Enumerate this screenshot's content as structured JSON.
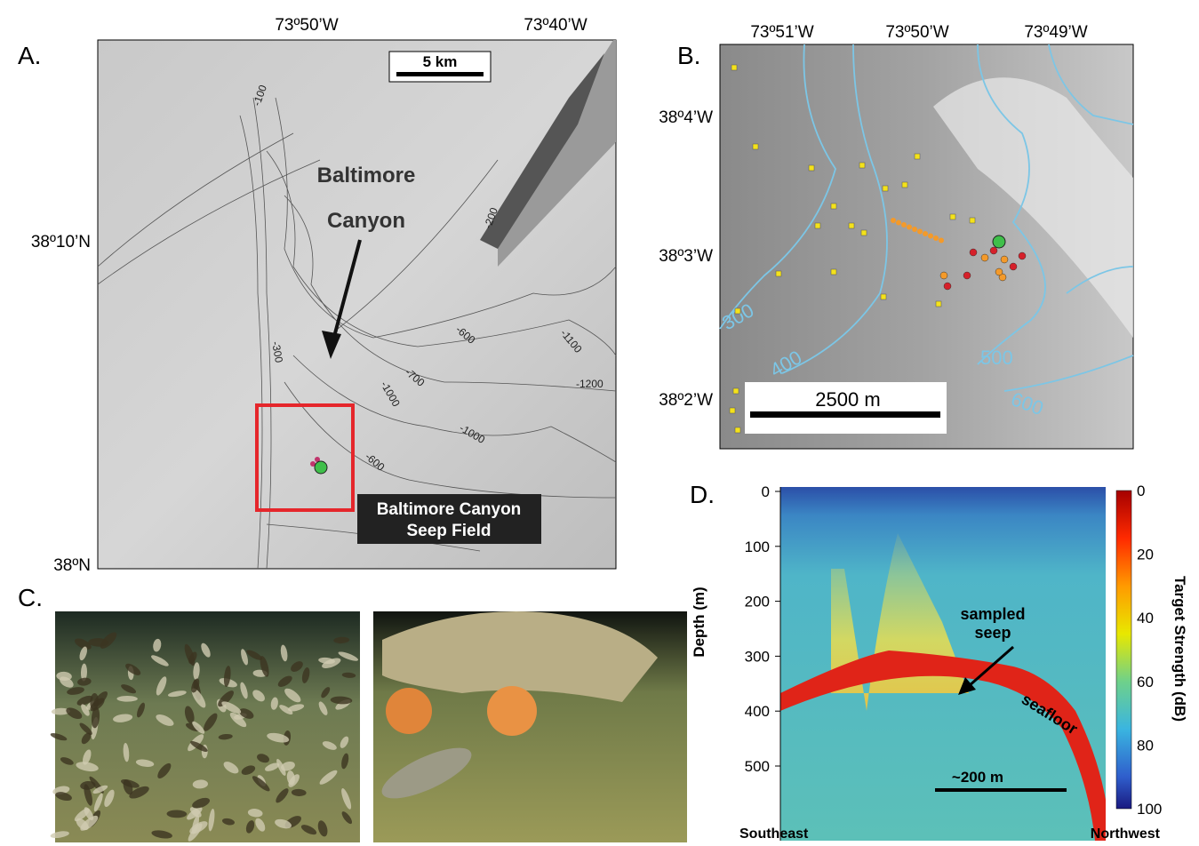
{
  "panel_a": {
    "label": "A.",
    "lon_labels": [
      "73º50’W",
      "73º40’W"
    ],
    "lat_labels": [
      "38º10’N",
      "38ºN"
    ],
    "scale_bar": "5 km",
    "canyon_label": [
      "Baltimore",
      "Canyon"
    ],
    "seep_field_label": [
      "Baltimore Canyon",
      "Seep Field"
    ],
    "contour_labels": [
      "-100",
      "-200",
      "-300",
      "-600",
      "-700",
      "-1000",
      "-1100",
      "-1200",
      "-1000",
      "-600"
    ]
  },
  "panel_b": {
    "label": "B.",
    "lon_labels": [
      "73º51’W",
      "73º50’W",
      "73º49’W"
    ],
    "lat_labels": [
      "38º4’W",
      "38º3’W",
      "38º2’W"
    ],
    "contour_labels": [
      "300",
      "400",
      "500",
      "600"
    ],
    "scale_bar": "2500 m"
  },
  "panel_c": {
    "label": "C."
  },
  "panel_d": {
    "label": "D.",
    "depth_ticks": [
      "0",
      "100",
      "200",
      "300",
      "400",
      "500"
    ],
    "depth_axis_label": "Depth (m)",
    "colorbar_ticks": [
      "0",
      "20",
      "40",
      "60",
      "80",
      "100"
    ],
    "colorbar_label": "Target Strength (dB)",
    "seep_label": [
      "sampled",
      "seep"
    ],
    "seafloor_label": "seafloor",
    "scale_bar": "~200 m",
    "left_label": "Southeast",
    "right_label": "Northwest"
  }
}
